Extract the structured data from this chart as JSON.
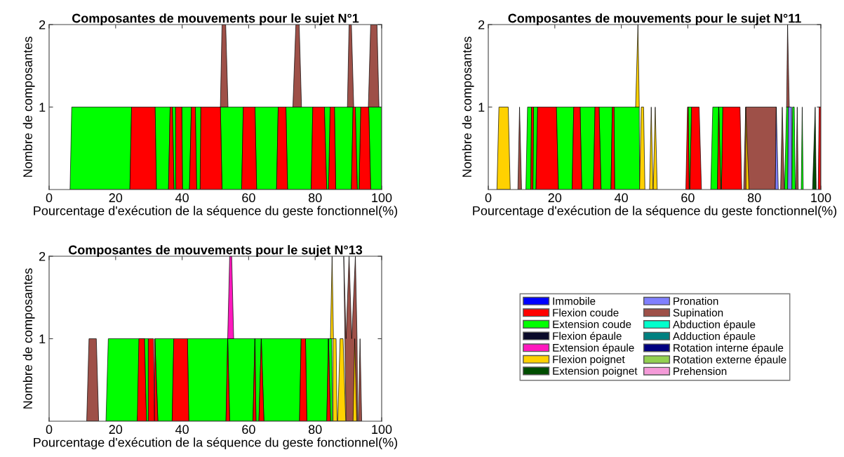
{
  "chart_data": [
    {
      "type": "area",
      "title": "Composantes de mouvements pour le sujet N°1",
      "xlabel": "Pourcentage d'exécution de la séquence du geste fonctionnel(%)",
      "ylabel": "Nombre de composantes",
      "xlim": [
        0,
        100
      ],
      "xticks": [
        0,
        20,
        40,
        60,
        80,
        100
      ],
      "ylim": [
        0,
        2
      ],
      "yticks": [
        1,
        2
      ],
      "grid": false,
      "series": [
        {
          "color": "#00ff00",
          "x": [
            6.3,
            6.8,
            24.8,
            24.3,
            null,
            32.3,
            31.9,
            36.4,
            35.9,
            null,
            37.6,
            37.1,
            38.0,
            38.1,
            null,
            40.1,
            39.9,
            42.8,
            42.2,
            null,
            44.4,
            44.0,
            45.6,
            45.4,
            null,
            52.0,
            51.5,
            58.4,
            57.9,
            null,
            62.4,
            61.9,
            68.9,
            68.4,
            null,
            71.7,
            71.2,
            79.3,
            78.8,
            null,
            83.5,
            82.8,
            84.5,
            84.0,
            null,
            86.2,
            85.8,
            91.4,
            90.9,
            null,
            92.7,
            92.1,
            93.7,
            93.2,
            null,
            96.7,
            96.1,
            100,
            100
          ],
          "values": [
            0,
            1,
            1,
            0,
            null,
            0,
            1,
            1,
            0,
            null,
            0,
            1,
            1,
            0,
            null,
            0,
            1,
            1,
            0,
            null,
            0,
            1,
            1,
            0,
            null,
            0,
            1,
            1,
            0,
            null,
            0,
            1,
            1,
            0,
            null,
            0,
            1,
            1,
            0,
            null,
            0,
            1,
            1,
            0,
            null,
            0,
            1,
            1,
            0,
            null,
            0,
            1,
            1,
            0,
            null,
            0,
            1,
            1,
            0
          ]
        },
        {
          "color": "#ff0000",
          "x": [
            24.3,
            24.8,
            31.9,
            32.3,
            null,
            35.9,
            36.4,
            37.1,
            37.6,
            null,
            38.1,
            38.0,
            39.9,
            40.1,
            null,
            42.2,
            42.8,
            44.0,
            44.4,
            null,
            45.4,
            45.6,
            51.5,
            52.0,
            null,
            57.9,
            58.4,
            61.9,
            62.4,
            null,
            68.4,
            68.9,
            71.2,
            71.7,
            null,
            78.8,
            79.3,
            82.8,
            83.5,
            null,
            84.0,
            84.5,
            85.8,
            86.2,
            null,
            90.9,
            91.4,
            92.1,
            92.7,
            null,
            93.2,
            93.7,
            96.1,
            96.7
          ],
          "values": [
            0,
            1,
            1,
            0,
            null,
            0,
            1,
            1,
            0,
            null,
            0,
            1,
            1,
            0,
            null,
            0,
            1,
            1,
            0,
            null,
            0,
            1,
            1,
            0,
            null,
            0,
            1,
            1,
            0,
            null,
            0,
            1,
            1,
            0,
            null,
            0,
            1,
            1,
            0,
            null,
            0,
            1,
            1,
            0,
            null,
            0,
            1,
            1,
            0,
            null,
            0,
            1,
            1,
            0
          ]
        },
        {
          "color": "#9e5048",
          "x": [
            51.5,
            52.0,
            53.1,
            53.8,
            null,
            73.3,
            74.2,
            75.2,
            75.9,
            null,
            89.7,
            90.2,
            90.9,
            91.6,
            null,
            96.0,
            96.7,
            98.6,
            99.2
          ],
          "values": [
            1,
            2,
            2,
            1,
            null,
            1,
            2,
            2,
            1,
            null,
            1,
            2,
            2,
            1,
            null,
            1,
            2,
            2,
            1
          ]
        }
      ]
    },
    {
      "type": "area",
      "title": "Composantes de mouvements pour le sujet N°11",
      "xlabel": "Pourcentage d'exécution de la séquence du geste fonctionnel(%)",
      "ylabel": "Nombre de composantes",
      "xlim": [
        0,
        100
      ],
      "xticks": [
        0,
        20,
        40,
        60,
        80,
        100
      ],
      "ylim": [
        0,
        2
      ],
      "yticks": [
        1,
        2
      ],
      "grid": false,
      "series": [
        {
          "color": "#00ff00",
          "x": [
            11.3,
            11.8,
            13.0,
            12.8,
            null,
            13.4,
            13.6,
            14.8,
            14.3,
            null,
            21.1,
            20.5,
            25.7,
            25.2,
            null,
            28.1,
            27.6,
            32.1,
            31.6,
            null,
            33.9,
            33.3,
            37.3,
            36.9,
            null,
            38.0,
            37.8,
            45.4,
            45.5,
            null,
            60.4,
            60.1,
            61.1,
            60.6,
            null,
            66.9,
            67.5,
            69.3,
            68.9,
            null,
            69.9,
            69.3,
            70.5,
            70.1,
            null,
            89.1,
            89.7,
            90.2,
            90.0,
            null,
            91.3,
            91.5,
            92.0,
            92.3,
            null,
            94.1,
            94.4,
            94.7
          ],
          "values": [
            0,
            1,
            1,
            0,
            null,
            0,
            1,
            1,
            0,
            null,
            0,
            1,
            1,
            0,
            null,
            0,
            1,
            1,
            0,
            null,
            0,
            1,
            1,
            0,
            null,
            0,
            1,
            1,
            0,
            null,
            0,
            1,
            1,
            0,
            null,
            0,
            1,
            1,
            0,
            null,
            0,
            1,
            1,
            0,
            null,
            0,
            1,
            1,
            0,
            null,
            0,
            1,
            1,
            0,
            null,
            0,
            1,
            0
          ]
        },
        {
          "color": "#ff0000",
          "x": [
            12.8,
            13.0,
            13.6,
            13.4,
            null,
            14.3,
            14.8,
            20.5,
            21.1,
            null,
            25.2,
            25.7,
            27.6,
            28.1,
            null,
            31.6,
            32.1,
            33.3,
            33.9,
            null,
            36.9,
            37.3,
            37.8,
            38.0,
            null,
            59.4,
            59.9,
            60.1,
            60.4,
            null,
            60.6,
            61.1,
            63.4,
            64.1,
            null,
            68.9,
            69.3,
            69.3,
            69.9,
            null,
            70.1,
            70.5,
            75.7,
            76.2,
            null,
            99.2,
            99.5,
            100,
            100
          ],
          "values": [
            0,
            1,
            1,
            0,
            null,
            0,
            1,
            1,
            0,
            null,
            0,
            1,
            1,
            0,
            null,
            0,
            1,
            1,
            0,
            null,
            0,
            1,
            1,
            0,
            null,
            0,
            1,
            1,
            0,
            null,
            0,
            1,
            1,
            0,
            null,
            0,
            1,
            1,
            0,
            null,
            0,
            1,
            1,
            0,
            null,
            0,
            1,
            1,
            0
          ]
        },
        {
          "color": "#ffd100",
          "x": [
            2.6,
            3.2,
            6.0,
            6.6,
            null,
            44.3,
            45.0,
            45.4,
            null,
            45.5,
            46.0,
            46.7,
            47.1,
            null,
            48.5,
            49.0,
            49.5,
            null,
            49.6,
            50.2,
            50.8
          ],
          "values": [
            0,
            1,
            1,
            0,
            null,
            1,
            2,
            1,
            null,
            0,
            1,
            1,
            0,
            null,
            0,
            1,
            0,
            null,
            0,
            1,
            0
          ]
        },
        {
          "color": "#9e5048",
          "x": [
            8.9,
            9.4,
            10.0,
            null,
            76.8,
            77.4,
            86.6,
            86.3,
            null,
            87.9,
            88.4,
            89.0,
            null,
            89.7,
            90.0,
            90.5,
            null,
            92.5,
            92.9,
            93.2
          ],
          "values": [
            0,
            1,
            0,
            null,
            0,
            1,
            1,
            0,
            null,
            0,
            1,
            0,
            null,
            1,
            2,
            1,
            null,
            0,
            1,
            0
          ]
        },
        {
          "color": "#ffd100",
          "x": [
            77.5,
            77.4,
            78.4
          ],
          "values": [
            0,
            1,
            0
          ]
        },
        {
          "color": "#8080ff",
          "x": [
            86.3,
            86.6,
            87.2,
            null,
            90.0,
            90.2,
            91.2,
            91.3
          ],
          "values": [
            0,
            1,
            0,
            null,
            0,
            1,
            1,
            0
          ]
        },
        {
          "color": "#004d00",
          "x": [
            97.5,
            98.3,
            98.6
          ],
          "values": [
            0,
            1,
            0
          ]
        }
      ]
    },
    {
      "type": "area",
      "title": "Composantes de mouvements pour le sujet N°13",
      "xlabel": "Pourcentage d'exécution de la séquence du geste fonctionnel(%)",
      "ylabel": "Nombre de composantes",
      "xlim": [
        0,
        100
      ],
      "xticks": [
        0,
        20,
        40,
        60,
        80,
        100
      ],
      "ylim": [
        0,
        2
      ],
      "yticks": [
        1,
        2
      ],
      "grid": false,
      "legend": "right",
      "series": [
        {
          "name": "Immobile",
          "color": "#0000ff"
        },
        {
          "name": "Flexion coude",
          "color": "#ff0000",
          "x": [
            26.5,
            27.0,
            28.7,
            29.3,
            null,
            29.8,
            29.8,
            31.4,
            31.7,
            null,
            31.7,
            31.8,
            31.8,
            32.7,
            null,
            37.0,
            37.5,
            41.6,
            42.0,
            null,
            53.2,
            53.7,
            53.7,
            54.3,
            null,
            61.3,
            61.9,
            61.9,
            62.2,
            null,
            63.1,
            63.8,
            63.8,
            64.6,
            null,
            75.3,
            75.8,
            77.1,
            77.5,
            null,
            83.5,
            84.0,
            84.0,
            84.6
          ],
          "values": [
            0,
            1,
            1,
            0,
            null,
            0,
            1,
            1,
            0,
            null,
            0,
            1,
            1,
            0,
            null,
            0,
            1,
            1,
            0,
            null,
            0,
            1,
            1,
            0,
            null,
            0,
            1,
            1,
            0,
            null,
            0,
            1,
            1,
            0,
            null,
            0,
            1,
            1,
            0,
            null,
            0,
            1,
            1,
            0
          ]
        },
        {
          "name": "Extension coude",
          "color": "#00ff00",
          "x": [
            17.1,
            17.8,
            28.7,
            26.5,
            null,
            29.3,
            28.7,
            29.8,
            29.8,
            null,
            32.7,
            31.8,
            37.5,
            37.0,
            null,
            42.0,
            41.6,
            53.7,
            53.2,
            null,
            54.3,
            53.7,
            61.9,
            61.3,
            null,
            62.2,
            61.9,
            63.8,
            63.1,
            null,
            64.6,
            63.8,
            75.8,
            75.3,
            null,
            77.5,
            77.1,
            84.0,
            83.5,
            null,
            84.6,
            84.0,
            85.0,
            85.2
          ],
          "values": [
            0,
            1,
            1,
            0,
            null,
            0,
            1,
            1,
            0,
            null,
            0,
            1,
            1,
            0,
            null,
            0,
            1,
            1,
            0,
            null,
            0,
            1,
            1,
            0,
            null,
            0,
            1,
            1,
            0,
            null,
            0,
            1,
            1,
            0,
            null,
            0,
            1,
            1,
            0,
            null,
            0,
            1,
            1,
            0
          ]
        },
        {
          "name": "Flexion épaule",
          "color": "#0a0a2a"
        },
        {
          "name": "Extension épaule",
          "color": "#ff19be",
          "x": [
            53.7,
            54.3,
            54.9,
            55.5
          ],
          "values": [
            1,
            2,
            2,
            1
          ]
        },
        {
          "name": "Flexion poignet",
          "color": "#ffd100",
          "x": [
            84.6,
            85.1,
            85.5,
            null,
            85.4,
            85.4,
            86.3,
            86.6,
            null,
            86.8,
            87.5,
            88.4,
            89.2,
            null,
            91.4,
            91.9,
            92.5
          ],
          "values": [
            1,
            2,
            1,
            null,
            0,
            1,
            1,
            0,
            null,
            0,
            1,
            1,
            0,
            null,
            0,
            1,
            0
          ]
        },
        {
          "name": "Extension poignet",
          "color": "#004d00"
        },
        {
          "name": "Pronation",
          "color": "#8080ff"
        },
        {
          "name": "Supination",
          "color": "#9e5048",
          "x": [
            11.3,
            12.0,
            14.2,
            14.9,
            null,
            89.3,
            88.6,
            89.3,
            90.2,
            91.0,
            92.1,
            92.6,
            92.8,
            null,
            93.0,
            93.5,
            94.0
          ],
          "values": [
            0,
            1,
            1,
            0,
            null,
            0,
            2,
            1,
            2,
            1,
            2,
            1,
            0,
            null,
            0,
            1,
            0
          ]
        },
        {
          "name": "Abduction épaule",
          "color": "#00ffcc"
        },
        {
          "name": "Adduction épaule",
          "color": "#008080"
        },
        {
          "name": "Rotation interne épaule",
          "color": "#000080"
        },
        {
          "name": "Rotation externe épaule",
          "color": "#92d050"
        },
        {
          "name": "Prehension",
          "color": "#f49ad8"
        }
      ]
    }
  ]
}
